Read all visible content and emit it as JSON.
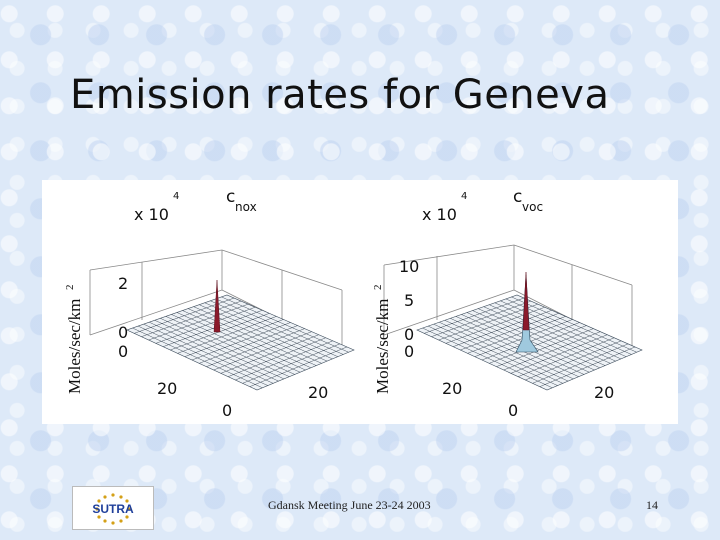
{
  "slide": {
    "title": "Emission rates for Geneva",
    "footer_text": "Gdansk Meeting June 23-24 2003",
    "page_number": "14",
    "logo_text": "SUTRA"
  },
  "chart_data": [
    {
      "type": "surface",
      "title_main": "c",
      "title_sub": "nox",
      "zlabel": "Moles/sec/km",
      "zlabel_sup": "2",
      "multiplier": "x 10",
      "multiplier_exp": "4",
      "z_ticks": [
        "2",
        "0"
      ],
      "x_ticks": [
        "0",
        "20"
      ],
      "y_ticks": [
        "0",
        "20"
      ],
      "peak_color": "#8b1a2b"
    },
    {
      "type": "surface",
      "title_main": "c",
      "title_sub": "voc",
      "zlabel": "Moles/sec/km",
      "zlabel_sup": "2",
      "multiplier": "x 10",
      "multiplier_exp": "4",
      "z_ticks": [
        "10",
        "5",
        "0"
      ],
      "x_ticks": [
        "0",
        "20"
      ],
      "y_ticks": [
        "0",
        "20"
      ],
      "peak_color": "#8b1a2b"
    }
  ]
}
